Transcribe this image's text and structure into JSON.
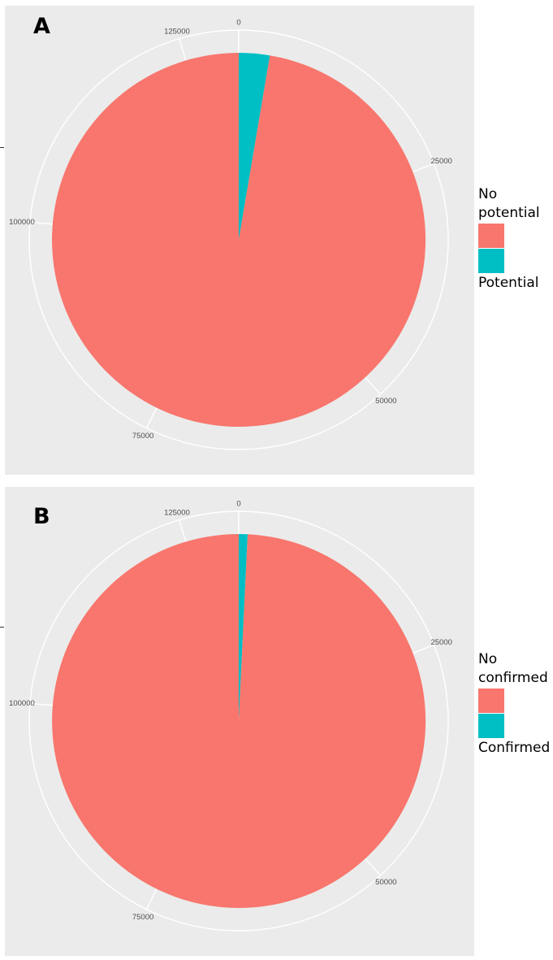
{
  "chart_data": [
    {
      "type": "pie",
      "panel_label": "A",
      "categories": [
        "No potential",
        "Potential"
      ],
      "values": [
        127500,
        3500
      ],
      "colors": [
        "#F8766D",
        "#00BFC4"
      ],
      "axis_ticks": [
        0,
        25000,
        50000,
        75000,
        100000,
        125000
      ],
      "axis_tick_labels": [
        "0",
        "25000",
        "50000",
        "75000",
        "100000",
        "125000"
      ],
      "grid": true,
      "legend_position": "right",
      "legend_lines": [
        [
          "No",
          "potential"
        ],
        [
          "Potential"
        ]
      ]
    },
    {
      "type": "pie",
      "panel_label": "B",
      "categories": [
        "No confirmed",
        "Confirmed"
      ],
      "values": [
        130000,
        1000
      ],
      "colors": [
        "#F8766D",
        "#00BFC4"
      ],
      "axis_ticks": [
        0,
        25000,
        50000,
        75000,
        100000,
        125000
      ],
      "axis_tick_labels": [
        "0",
        "25000",
        "50000",
        "75000",
        "100000",
        "125000"
      ],
      "grid": true,
      "legend_position": "right",
      "legend_lines": [
        [
          "No",
          "confirmed"
        ],
        [
          "Confirmed"
        ]
      ]
    }
  ]
}
